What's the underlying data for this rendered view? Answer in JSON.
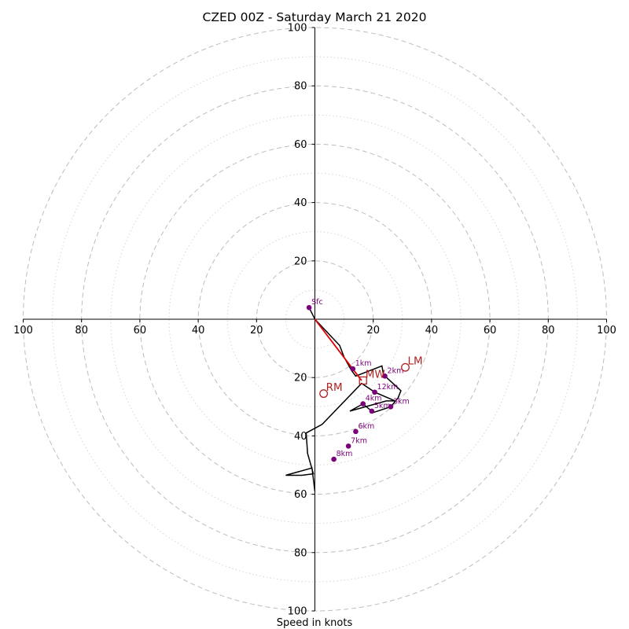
{
  "chart_data": {
    "type": "hodograph",
    "title": "CZED 00Z - Saturday March 21 2020",
    "xlabel": "Speed in knots",
    "range": [
      -100,
      100
    ],
    "ring_major": [
      20,
      40,
      60,
      80,
      100
    ],
    "ring_minor": [
      10,
      30,
      50,
      70,
      90
    ],
    "ticks": [
      {
        "label": "100",
        "value": -100
      },
      {
        "label": "80",
        "value": -80
      },
      {
        "label": "60",
        "value": -60
      },
      {
        "label": "40",
        "value": -40
      },
      {
        "label": "20",
        "value": -20
      },
      {
        "label": "20",
        "value": 20
      },
      {
        "label": "40",
        "value": 40
      },
      {
        "label": "60",
        "value": 60
      },
      {
        "label": "80",
        "value": 80
      },
      {
        "label": "100",
        "value": 100
      }
    ],
    "profile": [
      [
        -2,
        4
      ],
      [
        0,
        0
      ],
      [
        8.5,
        -9
      ],
      [
        10,
        -13
      ],
      [
        12.5,
        -17.5
      ],
      [
        14,
        -19.5
      ],
      [
        23,
        -16
      ],
      [
        23.5,
        -19
      ],
      [
        29.5,
        -24.5
      ],
      [
        28.5,
        -27
      ],
      [
        26,
        -30
      ],
      [
        20,
        -32
      ],
      [
        16.5,
        -29
      ],
      [
        12,
        -31.5
      ],
      [
        24.5,
        -28
      ],
      [
        27.5,
        -28
      ],
      [
        20.5,
        -25
      ],
      [
        16,
        -22
      ],
      [
        2.5,
        -36
      ],
      [
        -3,
        -39
      ],
      [
        -2.5,
        -46
      ],
      [
        -0.5,
        -53
      ],
      [
        -4.5,
        -53.5
      ],
      [
        -10,
        -53.5
      ],
      [
        -1,
        -51
      ],
      [
        0,
        -59
      ]
    ],
    "height_markers": [
      {
        "label": "Sfc",
        "u": -2,
        "v": 4
      },
      {
        "label": "1km",
        "u": 13,
        "v": -17
      },
      {
        "label": "2km",
        "u": 24,
        "v": -19.5
      },
      {
        "label": "12km",
        "u": 20.5,
        "v": -25
      },
      {
        "label": "4km",
        "u": 16.5,
        "v": -29
      },
      {
        "label": "3km",
        "u": 26,
        "v": -30
      },
      {
        "label": "5km",
        "u": 19.5,
        "v": -31.5
      },
      {
        "label": "6km",
        "u": 14,
        "v": -38.5
      },
      {
        "label": "7km",
        "u": 11.5,
        "v": -43.5
      },
      {
        "label": "8km",
        "u": 6.5,
        "v": -48
      }
    ],
    "storm_motion_vector": {
      "from": [
        0,
        0
      ],
      "to": [
        16,
        -21
      ]
    },
    "storm_motions": [
      {
        "label": "LM",
        "u": 31,
        "v": -16.5,
        "marker": "circle"
      },
      {
        "label": "MW",
        "u": 16.5,
        "v": -21,
        "marker": "square"
      },
      {
        "label": "RM",
        "u": 3,
        "v": -25.5,
        "marker": "circle"
      }
    ],
    "colors": {
      "profile": "#000000",
      "height_marker": "#7a007a",
      "storm_motion": "#b22222",
      "vector": "#e00000",
      "grid": "#bdbdbd"
    }
  }
}
